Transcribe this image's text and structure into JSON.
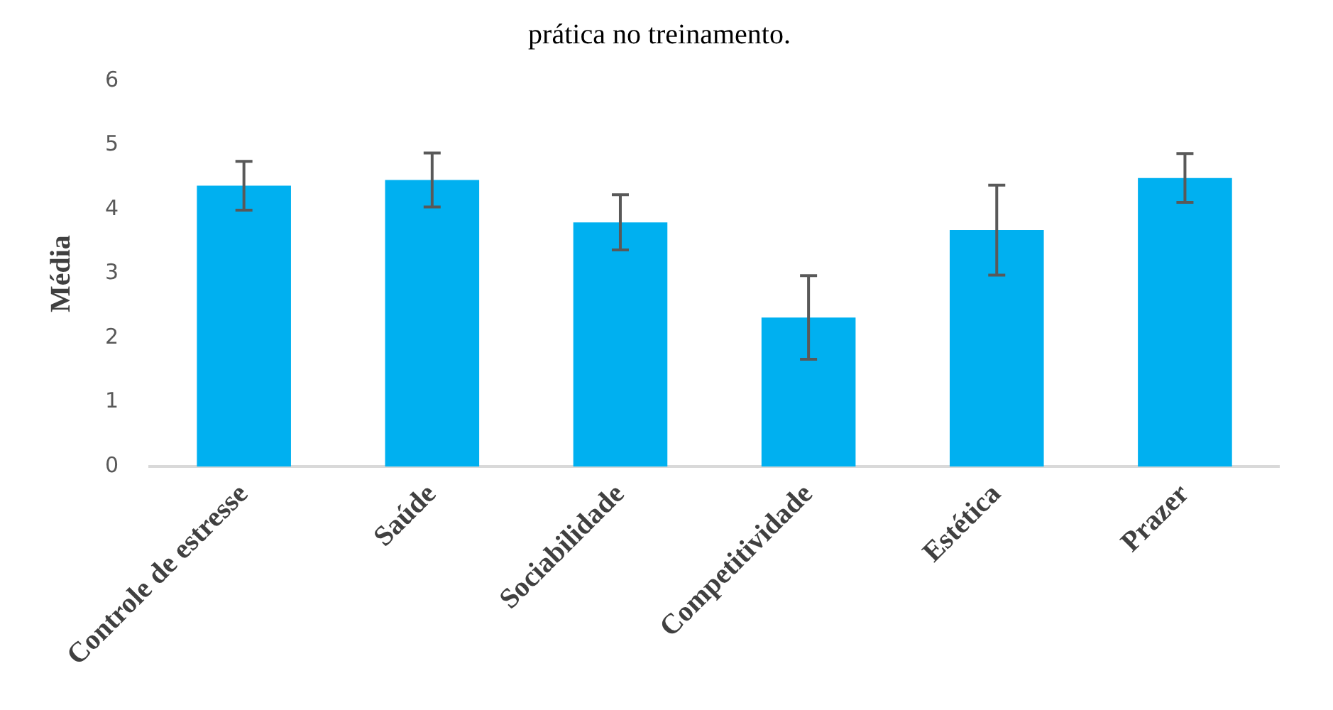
{
  "chart_data": {
    "type": "bar",
    "title": "prática no treinamento.",
    "ylabel": "Média",
    "categories": [
      "Controle de estresse",
      "Saúde",
      "Sociabilidade",
      "Competitividade",
      "Estética",
      "Prazer"
    ],
    "values": [
      4.37,
      4.46,
      3.8,
      2.32,
      3.68,
      4.49
    ],
    "errors": [
      0.38,
      0.42,
      0.43,
      0.65,
      0.7,
      0.38
    ],
    "color": "#00b0f0",
    "ylim": [
      0,
      6
    ],
    "yticks": [
      0,
      1,
      2,
      3,
      4,
      5,
      6
    ],
    "grid": false,
    "legend": false
  }
}
